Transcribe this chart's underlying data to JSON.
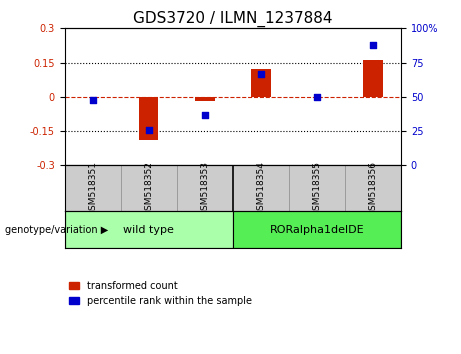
{
  "title": "GDS3720 / ILMN_1237884",
  "samples": [
    "GSM518351",
    "GSM518352",
    "GSM518353",
    "GSM518354",
    "GSM518355",
    "GSM518356"
  ],
  "bar_values": [
    0.0,
    -0.19,
    -0.02,
    0.12,
    0.0,
    0.16
  ],
  "scatter_values": [
    48,
    26,
    37,
    67,
    50,
    88
  ],
  "ylim_left": [
    -0.3,
    0.3
  ],
  "ylim_right": [
    0,
    100
  ],
  "yticks_left": [
    -0.3,
    -0.15,
    0,
    0.15,
    0.3
  ],
  "yticks_right": [
    0,
    25,
    50,
    75,
    100
  ],
  "bar_color": "#cc2200",
  "scatter_color": "#0000cc",
  "hline_color": "#cc2200",
  "dotted_line_color": "black",
  "groups": [
    {
      "label": "wild type",
      "indices": [
        0,
        1,
        2
      ],
      "color": "#aaffaa"
    },
    {
      "label": "RORalpha1delDE",
      "indices": [
        3,
        4,
        5
      ],
      "color": "#55ee55"
    }
  ],
  "genotype_label": "genotype/variation",
  "legend_bar_label": "transformed count",
  "legend_scatter_label": "percentile rank within the sample",
  "bg_color": "#ffffff",
  "plot_bg_color": "#ffffff",
  "tick_label_color_left": "#cc2200",
  "tick_label_color_right": "#0000cc",
  "title_fontsize": 11,
  "sample_bg_color": "#cccccc",
  "sample_sep_color": "#888888",
  "group_sep_color": "#000000"
}
